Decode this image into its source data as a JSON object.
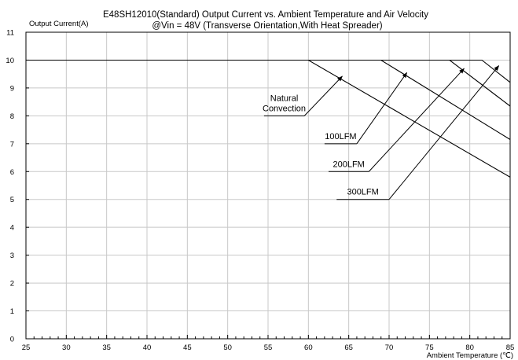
{
  "chart_data": {
    "type": "line",
    "title": "E48SH12010(Standard)  Output Current vs. Ambient Temperature and Air Velocity",
    "subtitle": "@Vin = 48V (Transverse Orientation,With Heat Spreader)",
    "ylabel": "Output Current(A)",
    "xlabel": "Ambient Temperature (℃)",
    "xlim": [
      25,
      85
    ],
    "ylim": [
      0,
      11
    ],
    "xticks": [
      25,
      30,
      35,
      40,
      45,
      50,
      55,
      60,
      65,
      70,
      75,
      80,
      85
    ],
    "yticks": [
      0,
      1,
      2,
      3,
      4,
      5,
      6,
      7,
      8,
      9,
      10,
      11
    ],
    "grid": true,
    "series": [
      {
        "name": "Natural\nConvection",
        "points": [
          [
            25,
            10
          ],
          [
            60,
            10
          ],
          [
            85,
            5.8
          ]
        ]
      },
      {
        "name": "100LFM",
        "points": [
          [
            25,
            10
          ],
          [
            69,
            10
          ],
          [
            85,
            7.15
          ]
        ]
      },
      {
        "name": "200LFM",
        "points": [
          [
            25,
            10
          ],
          [
            77.5,
            10
          ],
          [
            85,
            8.35
          ]
        ]
      },
      {
        "name": "300LFM",
        "points": [
          [
            25,
            10
          ],
          [
            81.5,
            10
          ],
          [
            85,
            9.2
          ]
        ]
      }
    ],
    "annotations": [
      {
        "series": 0,
        "label": "Natural\nConvection",
        "tail": [
          54.5,
          8
        ],
        "elbow": [
          59.5,
          8
        ],
        "tip": [
          64.2,
          9.42
        ]
      },
      {
        "series": 1,
        "label": "100LFM",
        "tail": [
          62,
          7
        ],
        "elbow": [
          66,
          7
        ],
        "tip": [
          72.2,
          9.55
        ]
      },
      {
        "series": 2,
        "label": "200LFM",
        "tail": [
          62.5,
          6
        ],
        "elbow": [
          67.5,
          6
        ],
        "tip": [
          79.3,
          9.7
        ]
      },
      {
        "series": 3,
        "label": "300LFM",
        "tail": [
          63.5,
          5
        ],
        "elbow": [
          70,
          5
        ],
        "tip": [
          83.6,
          9.8
        ]
      }
    ]
  }
}
